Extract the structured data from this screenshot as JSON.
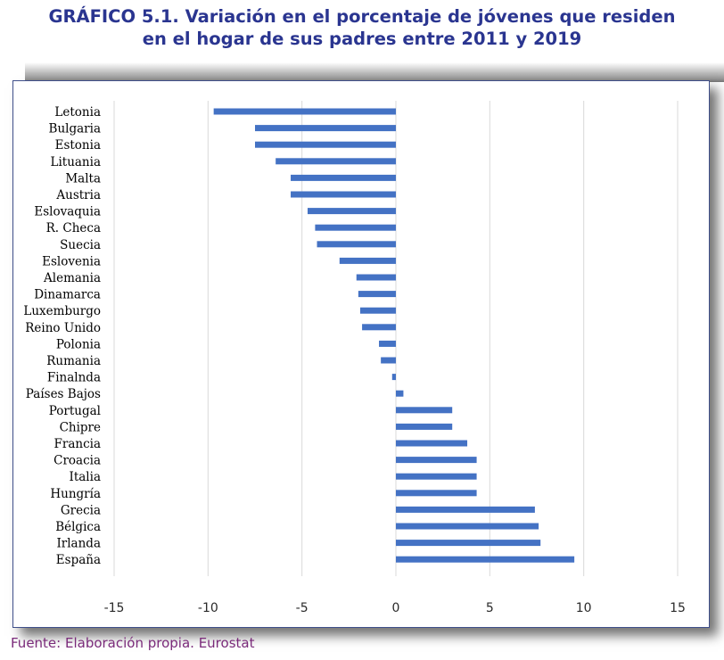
{
  "title": {
    "line1": "GRÁFICO 5.1. Variación en el porcentaje de jóvenes que residen",
    "line2": "en el hogar de sus padres entre 2011 y 2019"
  },
  "source": "Fuente: Elaboración propia. Eurostat",
  "colors": {
    "bar": "#4472c4",
    "grid": "#d9d9d9",
    "title": "#2a3590",
    "source": "#7a2a7a"
  },
  "chart_data": {
    "type": "bar",
    "orientation": "horizontal",
    "categories": [
      "Letonia",
      "Bulgaria",
      "Estonia",
      "Lituania",
      "Malta",
      "Austria",
      "Eslovaquia",
      "R. Checa",
      "Suecia",
      "Eslovenia",
      "Alemania",
      "Dinamarca",
      "Luxemburgo",
      "Reino Unido",
      "Polonia",
      "Rumania",
      "Finalnda",
      "Países Bajos",
      "Portugal",
      "Chipre",
      "Francia",
      "Croacia",
      "Italia",
      "Hungría",
      "Grecia",
      "Bélgica",
      "Irlanda",
      "España"
    ],
    "values": [
      -9.7,
      -7.5,
      -7.5,
      -6.4,
      -5.6,
      -5.6,
      -4.7,
      -4.3,
      -4.2,
      -3.0,
      -2.1,
      -2.0,
      -1.9,
      -1.8,
      -0.9,
      -0.8,
      -0.2,
      0.4,
      3.0,
      3.0,
      3.8,
      4.3,
      4.3,
      4.3,
      7.4,
      7.6,
      7.7,
      9.5
    ],
    "xlim": [
      -15,
      15
    ],
    "xticks": [
      "-15",
      "-10",
      "-5",
      "0",
      "5",
      "10",
      "15"
    ],
    "grid": "vertical",
    "legend": "none"
  }
}
